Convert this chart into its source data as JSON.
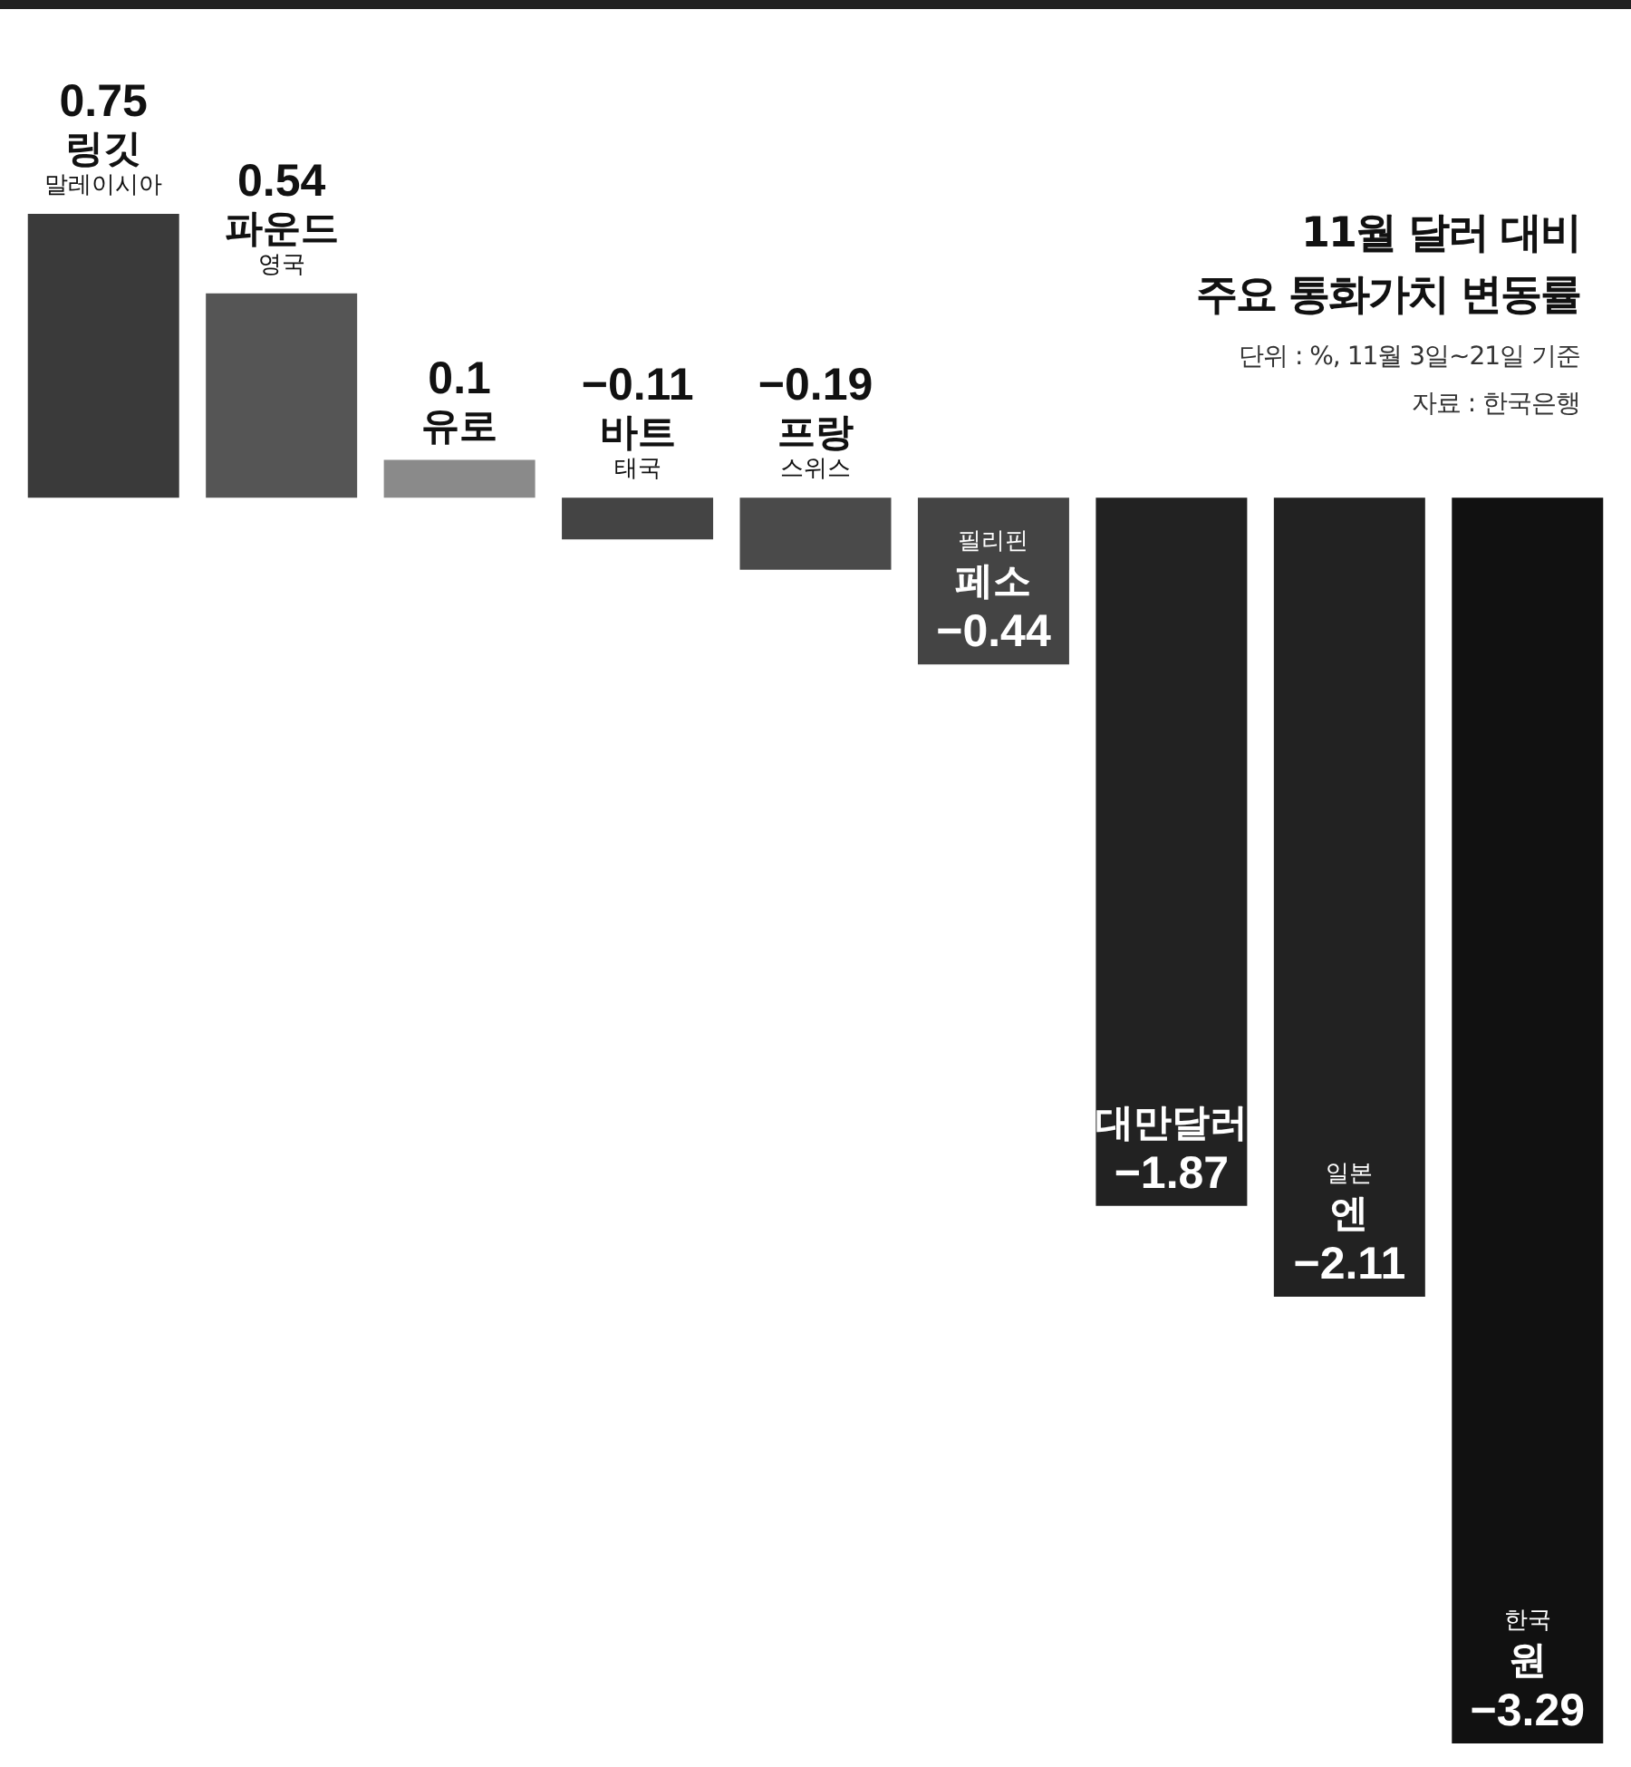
{
  "chart_data": {
    "type": "bar",
    "title": "11월 달러 대비\n주요 통화가치 변동률",
    "subtitle": "단위 : %, 11월 3일~21일 기준",
    "annotations": [
      "자료 : 한국은행"
    ],
    "categories": [
      "링깃\n말레이시아",
      "파운드\n영국",
      "유로",
      "바트\n태국",
      "프랑\n스위스",
      "필리핀\n페소",
      "대만달러",
      "일본\n엔",
      "한국\n원"
    ],
    "values": [
      0.75,
      0.54,
      0.1,
      -0.11,
      -0.19,
      -0.44,
      -1.87,
      -2.11,
      -3.29
    ],
    "colors": [
      "#3a3a3a",
      "#555555",
      "#8a8a8a",
      "#444444",
      "#4a4a4a",
      "#444444",
      "#222222",
      "#222222",
      "#111111"
    ],
    "data_labels": true,
    "legend": false
  }
}
